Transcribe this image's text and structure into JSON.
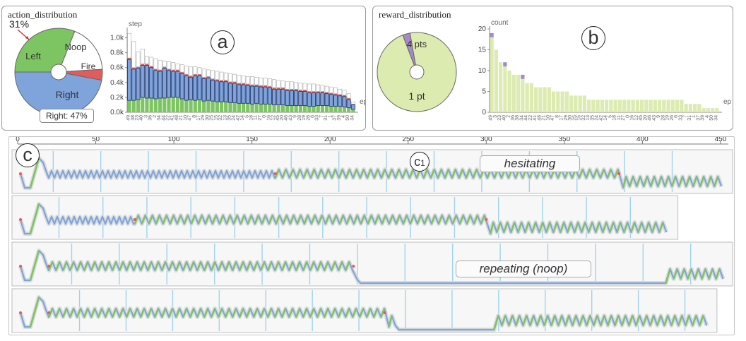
{
  "panel_a": {
    "title": "action_distribution",
    "marker": "a",
    "tooltip": "Right: 47%",
    "pct_callout": "31%"
  },
  "panel_b": {
    "title": "reward_distribution",
    "marker": "b"
  },
  "panel_c": {
    "marker": "c",
    "sub_marker": "c",
    "sub_marker_index": "1",
    "tags": [
      "hesitating",
      "repeating (noop)"
    ]
  },
  "colors": {
    "left": "#7dc462",
    "right": "#7fa4dc",
    "noop": "#ffffff",
    "fire": "#e35b5b",
    "reward_fill": "#dcebb0",
    "reward_mark": "#a58bc4",
    "vline": "#9fd3ec"
  },
  "chart_data": [
    {
      "type": "pie",
      "title": "action_distribution",
      "labels": [
        "Left",
        "Noop",
        "Fire",
        "Right"
      ],
      "values": [
        31,
        18,
        4,
        47
      ]
    },
    {
      "type": "bar",
      "stacked": true,
      "ylabel": "step",
      "xlabel": "ep",
      "ylim": [
        0,
        1.1
      ],
      "yticks": [
        "0.0k",
        "0.2k",
        "0.4k",
        "0.6k",
        "0.8k",
        "1.0k"
      ],
      "categories": [
        "49",
        "38",
        "23",
        "40",
        "3",
        "36",
        "2",
        "34",
        "44",
        "22",
        "41",
        "48",
        "21",
        "10",
        "47",
        "8",
        "17",
        "29",
        "30",
        "25",
        "15",
        "32",
        "13",
        "35",
        "24",
        "42",
        "14",
        "5",
        "18",
        "11",
        "27",
        "0",
        "16",
        "12",
        "45",
        "20",
        "46",
        "43",
        "9",
        "28",
        "19",
        "26",
        "6",
        "33",
        "7",
        "31",
        "1",
        "37",
        "39",
        "4",
        "50",
        "34"
      ],
      "series": [
        {
          "name": "Left",
          "values": [
            0.16,
            0.16,
            0.17,
            0.2,
            0.19,
            0.19,
            0.18,
            0.19,
            0.19,
            0.2,
            0.2,
            0.2,
            0.18,
            0.16,
            0.17,
            0.16,
            0.17,
            0.15,
            0.16,
            0.15,
            0.14,
            0.14,
            0.14,
            0.13,
            0.13,
            0.12,
            0.12,
            0.12,
            0.11,
            0.12,
            0.11,
            0.11,
            0.11,
            0.1,
            0.1,
            0.1,
            0.09,
            0.09,
            0.09,
            0.09,
            0.09,
            0.08,
            0.08,
            0.09,
            0.09,
            0.09,
            0.08,
            0.08,
            0.08,
            0.07,
            0.06,
            0.04
          ]
        },
        {
          "name": "Right",
          "values": [
            0.55,
            0.42,
            0.42,
            0.43,
            0.44,
            0.41,
            0.38,
            0.36,
            0.4,
            0.36,
            0.35,
            0.35,
            0.34,
            0.33,
            0.3,
            0.33,
            0.32,
            0.3,
            0.3,
            0.28,
            0.28,
            0.27,
            0.27,
            0.26,
            0.26,
            0.25,
            0.25,
            0.24,
            0.24,
            0.23,
            0.23,
            0.23,
            0.22,
            0.21,
            0.21,
            0.21,
            0.2,
            0.2,
            0.2,
            0.19,
            0.19,
            0.18,
            0.18,
            0.17,
            0.17,
            0.16,
            0.16,
            0.15,
            0.14,
            0.14,
            0.11,
            0.06
          ]
        },
        {
          "name": "Fire",
          "values": [
            0.02,
            0.02,
            0.02,
            0.02,
            0.02,
            0.02,
            0.02,
            0.02,
            0.02,
            0.02,
            0.02,
            0.02,
            0.02,
            0.02,
            0.02,
            0.02,
            0.02,
            0.02,
            0.02,
            0.02,
            0.02,
            0.02,
            0.02,
            0.02,
            0.02,
            0.02,
            0.02,
            0.02,
            0.02,
            0.02,
            0.02,
            0.02,
            0.02,
            0.02,
            0.02,
            0.02,
            0.02,
            0.02,
            0.02,
            0.02,
            0.02,
            0.02,
            0.02,
            0.02,
            0.02,
            0.02,
            0.02,
            0.02,
            0.02,
            0.02,
            0.02,
            0.01
          ]
        },
        {
          "name": "Noop",
          "values": [
            0.33,
            0.35,
            0.2,
            0.2,
            0.1,
            0.12,
            0.14,
            0.13,
            0.08,
            0.1,
            0.1,
            0.08,
            0.1,
            0.11,
            0.12,
            0.1,
            0.09,
            0.11,
            0.09,
            0.11,
            0.11,
            0.11,
            0.1,
            0.11,
            0.1,
            0.11,
            0.1,
            0.1,
            0.11,
            0.1,
            0.1,
            0.1,
            0.1,
            0.11,
            0.1,
            0.09,
            0.1,
            0.1,
            0.09,
            0.09,
            0.09,
            0.1,
            0.1,
            0.09,
            0.08,
            0.08,
            0.08,
            0.08,
            0.07,
            0.07,
            0.06,
            0.03
          ]
        }
      ]
    },
    {
      "type": "pie",
      "title": "reward_distribution",
      "labels": [
        "1 pt",
        "4 pts"
      ],
      "values": [
        97,
        3
      ]
    },
    {
      "type": "bar",
      "ylabel": "count",
      "xlabel": "ep",
      "ylim": [
        0,
        20
      ],
      "yticks": [
        "0",
        "5",
        "10",
        "15",
        "20"
      ],
      "categories": [
        "49",
        "3",
        "23",
        "40",
        "2",
        "36",
        "38",
        "34",
        "44",
        "22",
        "41",
        "48",
        "21",
        "10",
        "47",
        "8",
        "17",
        "29",
        "30",
        "25",
        "15",
        "32",
        "13",
        "35",
        "24",
        "42",
        "14",
        "5",
        "18",
        "11",
        "27",
        "0",
        "16",
        "12",
        "45",
        "20",
        "46",
        "43",
        "9",
        "28",
        "19",
        "26",
        "6",
        "33",
        "7",
        "31",
        "1",
        "37",
        "39",
        "4",
        "50",
        "34"
      ],
      "series": [
        {
          "name": "1 pt",
          "values": [
            18,
            15,
            12,
            11,
            10,
            9,
            9,
            8,
            7,
            7,
            6,
            6,
            6,
            6,
            5,
            5,
            5,
            5,
            4,
            4,
            4,
            4,
            3,
            3,
            3,
            3,
            3,
            3,
            3,
            3,
            3,
            3,
            3,
            3,
            3,
            3,
            3,
            3,
            3,
            3,
            3,
            3,
            3,
            3,
            2,
            2,
            2,
            2,
            1,
            1,
            1,
            1
          ]
        },
        {
          "name": "4 pts",
          "values": [
            1,
            0,
            0,
            1,
            0,
            0,
            0,
            1,
            0,
            0,
            0,
            0,
            0,
            0,
            0,
            0,
            0,
            0,
            0,
            0,
            0,
            0,
            0,
            0,
            0,
            0,
            0,
            0,
            0,
            0,
            0,
            0,
            0,
            0,
            0,
            0,
            0,
            0,
            0,
            0,
            0,
            0,
            0,
            0,
            0,
            0,
            0,
            0,
            0,
            0,
            0,
            0
          ]
        }
      ]
    },
    {
      "type": "line",
      "title": "",
      "xlim": [
        0,
        455
      ],
      "xticks": [
        "0",
        "50",
        "100",
        "150",
        "200",
        "250",
        "300",
        "350",
        "400",
        "450"
      ],
      "episodes": [
        {
          "length": 455,
          "repeat_start": 165,
          "repeat_end": 385,
          "noop_segments": [
            [
              55,
              62
            ],
            [
              115,
              128
            ]
          ]
        },
        {
          "length": 420,
          "repeat_start": 75,
          "repeat_end": 300,
          "noop_segments": [
            [
              55,
              63
            ]
          ]
        },
        {
          "length": 455,
          "repeat_start": 20,
          "repeat_end": 215,
          "noop_segments": [
            [
              215,
              415
            ]
          ]
        },
        {
          "length": 445,
          "repeat_start": 20,
          "repeat_end": 235,
          "noop_segments": [
            [
              240,
              305
            ]
          ]
        }
      ]
    }
  ]
}
